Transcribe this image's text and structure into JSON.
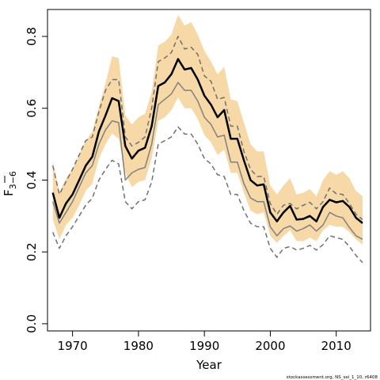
{
  "chart_data": {
    "type": "line",
    "title": "",
    "xlabel": "Year",
    "ylabel": "F",
    "ylabel_subscript": "3−6",
    "xlim": [
      1966.2,
      2015.2
    ],
    "ylim": [
      -0.02,
      0.875
    ],
    "xticks": [
      1970,
      1980,
      1990,
      2000,
      2010
    ],
    "yticks": [
      0.0,
      0.2,
      0.4,
      0.6,
      0.8
    ],
    "ytick_labels": [
      "0.0",
      "0.2",
      "0.4",
      "0.6",
      "0.8"
    ],
    "grid": false,
    "legend": "none",
    "footer": "stockassessment.org, NS_sei_1_10, r6408",
    "colors": {
      "band": "#f7d9a8",
      "estimate": "#000000",
      "previous": "#808080",
      "previous_bounds": "#707070"
    },
    "x": [
      1967,
      1968,
      1969,
      1970,
      1971,
      1972,
      1973,
      1974,
      1975,
      1976,
      1977,
      1978,
      1979,
      1980,
      1981,
      1982,
      1983,
      1984,
      1985,
      1986,
      1987,
      1988,
      1989,
      1990,
      1991,
      1992,
      1993,
      1994,
      1995,
      1996,
      1997,
      1998,
      1999,
      2000,
      2001,
      2002,
      2003,
      2004,
      2005,
      2006,
      2007,
      2008,
      2009,
      2010,
      2011,
      2012,
      2013,
      2014
    ],
    "series": [
      {
        "role": "estimate",
        "style": "solid",
        "width": 2.5,
        "values": [
          0.365,
          0.295,
          0.335,
          0.36,
          0.4,
          0.44,
          0.465,
          0.535,
          0.58,
          0.628,
          0.62,
          0.495,
          0.46,
          0.482,
          0.49,
          0.55,
          0.662,
          0.672,
          0.695,
          0.737,
          0.708,
          0.712,
          0.68,
          0.635,
          0.61,
          0.575,
          0.595,
          0.515,
          0.515,
          0.455,
          0.4,
          0.385,
          0.388,
          0.31,
          0.285,
          0.31,
          0.328,
          0.29,
          0.292,
          0.3,
          0.285,
          0.325,
          0.345,
          0.338,
          0.342,
          0.325,
          0.295,
          0.28
        ]
      },
      {
        "role": "band_upper",
        "values": [
          0.455,
          0.365,
          0.405,
          0.43,
          0.47,
          0.51,
          0.535,
          0.605,
          0.67,
          0.745,
          0.74,
          0.58,
          0.555,
          0.575,
          0.585,
          0.645,
          0.775,
          0.785,
          0.805,
          0.86,
          0.83,
          0.84,
          0.805,
          0.76,
          0.73,
          0.695,
          0.715,
          0.625,
          0.62,
          0.56,
          0.5,
          0.48,
          0.48,
          0.385,
          0.36,
          0.385,
          0.405,
          0.36,
          0.365,
          0.375,
          0.355,
          0.4,
          0.425,
          0.415,
          0.425,
          0.405,
          0.37,
          0.355
        ]
      },
      {
        "role": "band_lower",
        "values": [
          0.29,
          0.235,
          0.275,
          0.295,
          0.33,
          0.37,
          0.39,
          0.46,
          0.5,
          0.53,
          0.515,
          0.42,
          0.38,
          0.395,
          0.4,
          0.46,
          0.565,
          0.575,
          0.595,
          0.63,
          0.6,
          0.6,
          0.57,
          0.525,
          0.505,
          0.47,
          0.485,
          0.42,
          0.42,
          0.365,
          0.315,
          0.305,
          0.31,
          0.245,
          0.225,
          0.245,
          0.26,
          0.23,
          0.23,
          0.24,
          0.23,
          0.26,
          0.275,
          0.27,
          0.27,
          0.255,
          0.235,
          0.22
        ]
      },
      {
        "role": "previous",
        "style": "solid",
        "width": 1.5,
        "values": [
          0.34,
          0.28,
          0.31,
          0.34,
          0.38,
          0.42,
          0.44,
          0.5,
          0.54,
          0.565,
          0.56,
          0.4,
          0.42,
          0.43,
          0.435,
          0.5,
          0.61,
          0.625,
          0.64,
          0.672,
          0.65,
          0.65,
          0.62,
          0.575,
          0.555,
          0.52,
          0.525,
          0.45,
          0.45,
          0.39,
          0.35,
          0.34,
          0.34,
          0.27,
          0.245,
          0.265,
          0.272,
          0.258,
          0.265,
          0.275,
          0.258,
          0.275,
          0.31,
          0.3,
          0.295,
          0.268,
          0.245,
          0.235
        ]
      },
      {
        "role": "previous_upper",
        "style": "dashed",
        "width": 1.5,
        "values": [
          0.44,
          0.36,
          0.395,
          0.43,
          0.47,
          0.51,
          0.52,
          0.59,
          0.65,
          0.68,
          0.68,
          0.52,
          0.495,
          0.505,
          0.52,
          0.6,
          0.73,
          0.74,
          0.755,
          0.8,
          0.765,
          0.77,
          0.75,
          0.69,
          0.675,
          0.625,
          0.63,
          0.55,
          0.55,
          0.48,
          0.43,
          0.41,
          0.41,
          0.335,
          0.305,
          0.33,
          0.335,
          0.32,
          0.33,
          0.338,
          0.32,
          0.34,
          0.378,
          0.362,
          0.36,
          0.335,
          0.305,
          0.29
        ]
      },
      {
        "role": "previous_lower",
        "style": "dashed",
        "width": 1.5,
        "values": [
          0.255,
          0.21,
          0.245,
          0.27,
          0.3,
          0.33,
          0.35,
          0.4,
          0.43,
          0.455,
          0.445,
          0.34,
          0.32,
          0.34,
          0.345,
          0.395,
          0.5,
          0.51,
          0.52,
          0.548,
          0.528,
          0.528,
          0.5,
          0.46,
          0.445,
          0.415,
          0.41,
          0.36,
          0.36,
          0.315,
          0.28,
          0.27,
          0.27,
          0.21,
          0.185,
          0.21,
          0.215,
          0.205,
          0.21,
          0.218,
          0.205,
          0.22,
          0.245,
          0.24,
          0.235,
          0.215,
          0.19,
          0.17
        ]
      }
    ]
  }
}
